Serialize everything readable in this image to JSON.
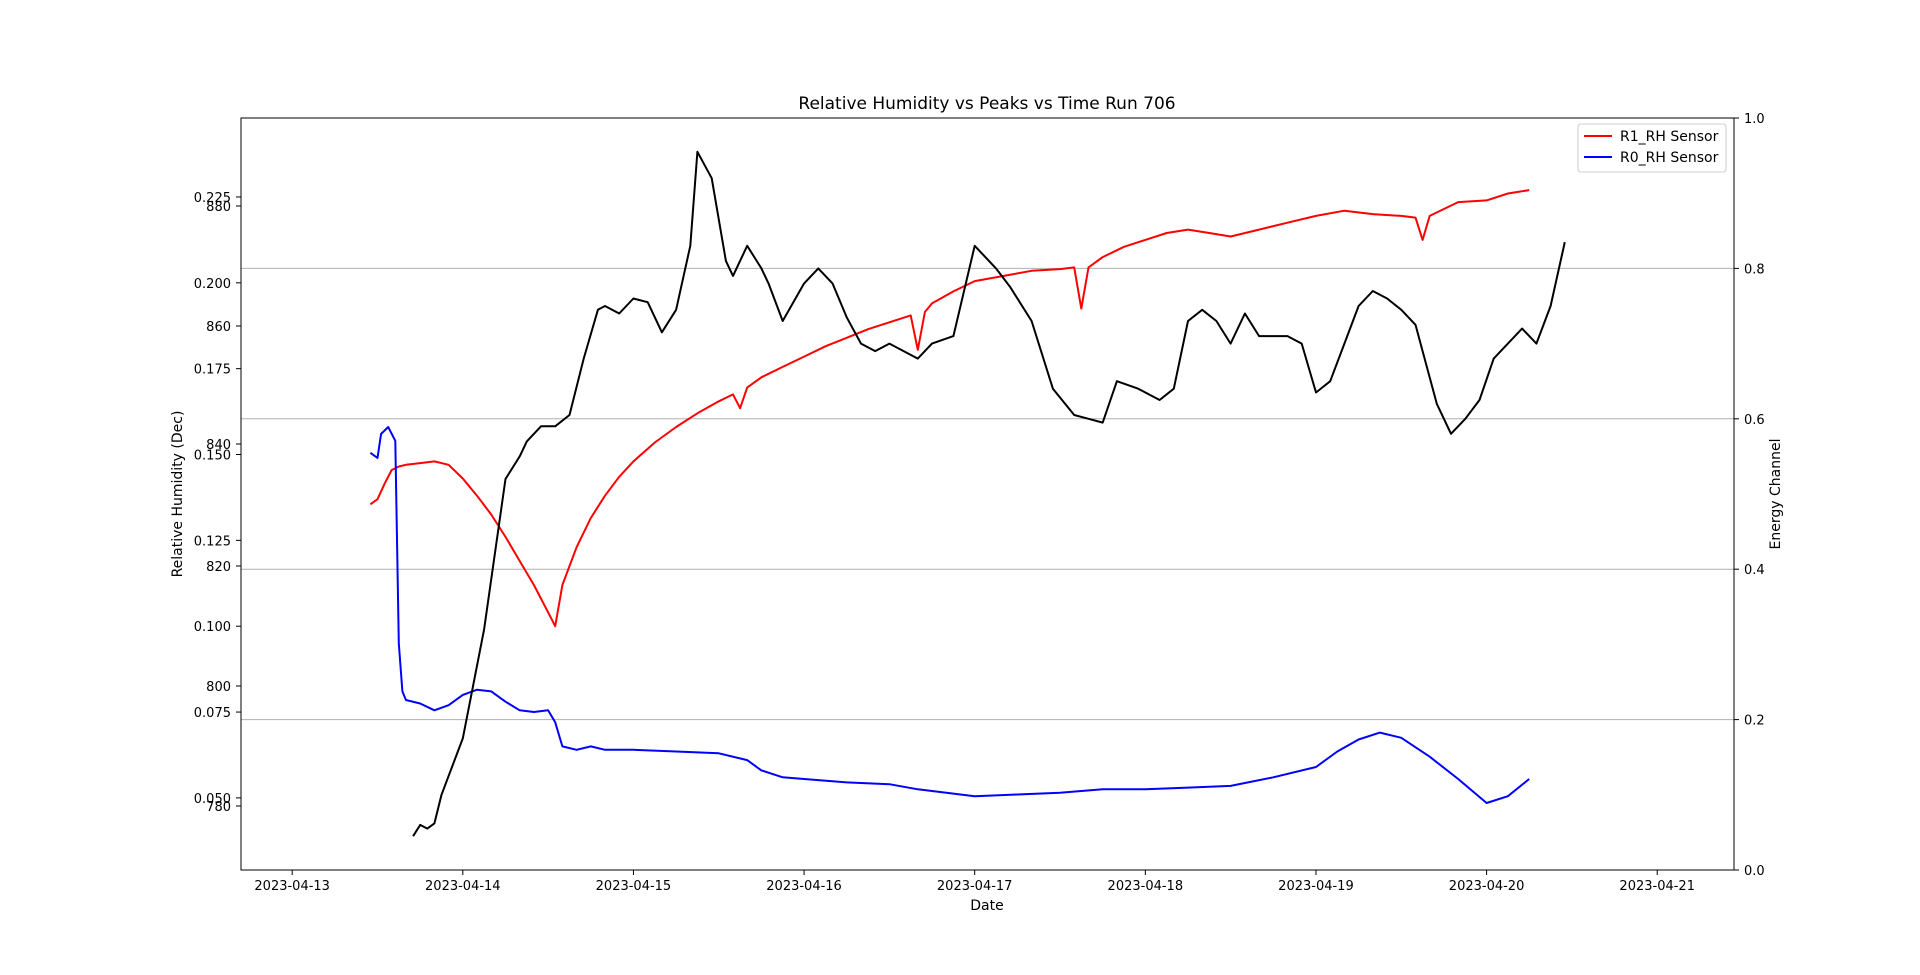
{
  "chart_data": {
    "type": "line",
    "title": "Relative Humidity vs Peaks vs Time Run 706",
    "xlabel": "Date",
    "ylabel_left": "Relative Humidity (Dec)",
    "ylabel_right": "Energy Channel",
    "x_ticks": [
      "2023-04-13",
      "2023-04-14",
      "2023-04-15",
      "2023-04-16",
      "2023-04-17",
      "2023-04-18",
      "2023-04-19",
      "2023-04-20",
      "2023-04-21"
    ],
    "left_ticks_a": [
      "0.050",
      "0.075",
      "0.100",
      "0.125",
      "0.150",
      "0.175",
      "0.200",
      "0.225"
    ],
    "left_ticks_b": [
      "780",
      "800",
      "820",
      "840",
      "860",
      "880"
    ],
    "right_ticks": [
      "0.0",
      "0.2",
      "0.4",
      "0.6",
      "0.8",
      "1.0"
    ],
    "ylim_left": [
      0.029,
      0.248
    ],
    "ylim_right": [
      0.0,
      1.0
    ],
    "xlim_days": [
      -0.3,
      8.45
    ],
    "grid": "horizontal lines at right-axis ticks",
    "legend": {
      "placement": "top-right",
      "entries": [
        {
          "label": "R1_RH Sensor",
          "color": "#ff0000"
        },
        {
          "label": "R0_RH Sensor",
          "color": "#0000ff"
        }
      ]
    },
    "series": [
      {
        "name": "R1_RH Sensor",
        "color": "#ff0000",
        "axis": "left",
        "x": [
          "2023-04-13 11:00",
          "2023-04-13 12:00",
          "2023-04-13 13:00",
          "2023-04-13 14:00",
          "2023-04-13 15:00",
          "2023-04-13 16:00",
          "2023-04-13 18:00",
          "2023-04-13 20:00",
          "2023-04-13 22:00",
          "2023-04-14 00:00",
          "2023-04-14 02:00",
          "2023-04-14 04:00",
          "2023-04-14 06:00",
          "2023-04-14 08:00",
          "2023-04-14 10:00",
          "2023-04-14 11:30",
          "2023-04-14 12:30",
          "2023-04-14 13:00",
          "2023-04-14 14:00",
          "2023-04-14 16:00",
          "2023-04-14 18:00",
          "2023-04-14 20:00",
          "2023-04-14 22:00",
          "2023-04-15 00:00",
          "2023-04-15 03:00",
          "2023-04-15 06:00",
          "2023-04-15 09:00",
          "2023-04-15 12:00",
          "2023-04-15 14:00",
          "2023-04-15 15:00",
          "2023-04-15 16:00",
          "2023-04-15 18:00",
          "2023-04-15 21:00",
          "2023-04-16 00:00",
          "2023-04-16 03:00",
          "2023-04-16 06:00",
          "2023-04-16 09:00",
          "2023-04-16 12:00",
          "2023-04-16 15:00",
          "2023-04-16 16:00",
          "2023-04-16 17:00",
          "2023-04-16 18:00",
          "2023-04-16 21:00",
          "2023-04-17 00:00",
          "2023-04-17 04:00",
          "2023-04-17 08:00",
          "2023-04-17 12:00",
          "2023-04-17 14:00",
          "2023-04-17 15:00",
          "2023-04-17 16:00",
          "2023-04-17 18:00",
          "2023-04-17 21:00",
          "2023-04-18 00:00",
          "2023-04-18 03:00",
          "2023-04-18 06:00",
          "2023-04-18 09:00",
          "2023-04-18 12:00",
          "2023-04-18 16:00",
          "2023-04-18 20:00",
          "2023-04-19 00:00",
          "2023-04-19 04:00",
          "2023-04-19 08:00",
          "2023-04-19 12:00",
          "2023-04-19 14:00",
          "2023-04-19 15:00",
          "2023-04-19 16:00",
          "2023-04-19 18:00",
          "2023-04-19 20:00",
          "2023-04-20 00:00",
          "2023-04-20 03:00",
          "2023-04-20 06:00"
        ],
        "values": [
          0.1355,
          0.137,
          0.1415,
          0.1455,
          0.1465,
          0.147,
          0.1475,
          0.148,
          0.147,
          0.143,
          0.138,
          0.1325,
          0.126,
          0.119,
          0.112,
          0.106,
          0.102,
          0.1,
          0.112,
          0.123,
          0.1315,
          0.138,
          0.1435,
          0.148,
          0.1535,
          0.158,
          0.162,
          0.1655,
          0.1675,
          0.1635,
          0.1695,
          0.1725,
          0.1755,
          0.1785,
          0.1815,
          0.184,
          0.1865,
          0.1885,
          0.1905,
          0.1805,
          0.1915,
          0.194,
          0.1975,
          0.2005,
          0.202,
          0.2035,
          0.204,
          0.2045,
          0.1925,
          0.2045,
          0.2075,
          0.2105,
          0.2125,
          0.2145,
          0.2155,
          0.2145,
          0.2135,
          0.2155,
          0.2175,
          0.2195,
          0.221,
          0.22,
          0.2195,
          0.219,
          0.2125,
          0.2195,
          0.2215,
          0.2235,
          0.224,
          0.226,
          0.227
        ]
      },
      {
        "name": "R0_RH Sensor",
        "color": "#0000ff",
        "axis": "left",
        "x": [
          "2023-04-13 11:00",
          "2023-04-13 12:00",
          "2023-04-13 12:30",
          "2023-04-13 13:30",
          "2023-04-13 14:30",
          "2023-04-13 15:00",
          "2023-04-13 15:30",
          "2023-04-13 16:00",
          "2023-04-13 18:00",
          "2023-04-13 20:00",
          "2023-04-13 22:00",
          "2023-04-14 00:00",
          "2023-04-14 02:00",
          "2023-04-14 04:00",
          "2023-04-14 06:00",
          "2023-04-14 08:00",
          "2023-04-14 10:00",
          "2023-04-14 12:00",
          "2023-04-14 13:00",
          "2023-04-14 14:00",
          "2023-04-14 16:00",
          "2023-04-14 18:00",
          "2023-04-14 20:00",
          "2023-04-15 00:00",
          "2023-04-15 06:00",
          "2023-04-15 12:00",
          "2023-04-15 16:00",
          "2023-04-15 18:00",
          "2023-04-15 21:00",
          "2023-04-16 00:00",
          "2023-04-16 06:00",
          "2023-04-16 12:00",
          "2023-04-16 16:00",
          "2023-04-16 20:00",
          "2023-04-17 00:00",
          "2023-04-17 06:00",
          "2023-04-17 12:00",
          "2023-04-17 18:00",
          "2023-04-18 00:00",
          "2023-04-18 06:00",
          "2023-04-18 12:00",
          "2023-04-18 18:00",
          "2023-04-19 00:00",
          "2023-04-19 03:00",
          "2023-04-19 06:00",
          "2023-04-19 09:00",
          "2023-04-19 12:00",
          "2023-04-19 16:00",
          "2023-04-19 20:00",
          "2023-04-20 00:00",
          "2023-04-20 03:00",
          "2023-04-20 06:00"
        ],
        "values": [
          0.1505,
          0.149,
          0.156,
          0.158,
          0.154,
          0.095,
          0.081,
          0.0785,
          0.0775,
          0.0755,
          0.077,
          0.08,
          0.0815,
          0.081,
          0.078,
          0.0755,
          0.075,
          0.0755,
          0.072,
          0.065,
          0.064,
          0.065,
          0.064,
          0.064,
          0.0635,
          0.063,
          0.061,
          0.058,
          0.056,
          0.0555,
          0.0545,
          0.054,
          0.0525,
          0.0515,
          0.0505,
          0.051,
          0.0515,
          0.0525,
          0.0525,
          0.053,
          0.0535,
          0.056,
          0.059,
          0.0635,
          0.067,
          0.069,
          0.0675,
          0.062,
          0.0555,
          0.0485,
          0.0505,
          0.0555
        ]
      },
      {
        "name": "",
        "color": "#000000",
        "axis": "right",
        "x": [
          "2023-04-13 17:00",
          "2023-04-13 18:00",
          "2023-04-13 19:00",
          "2023-04-13 20:00",
          "2023-04-13 21:00",
          "2023-04-14 00:00",
          "2023-04-14 03:00",
          "2023-04-14 06:00",
          "2023-04-14 08:00",
          "2023-04-14 09:00",
          "2023-04-14 11:00",
          "2023-04-14 13:00",
          "2023-04-14 15:00",
          "2023-04-14 17:00",
          "2023-04-14 19:00",
          "2023-04-14 20:00",
          "2023-04-14 22:00",
          "2023-04-15 00:00",
          "2023-04-15 02:00",
          "2023-04-15 04:00",
          "2023-04-15 06:00",
          "2023-04-15 08:00",
          "2023-04-15 09:00",
          "2023-04-15 11:00",
          "2023-04-15 13:00",
          "2023-04-15 14:00",
          "2023-04-15 16:00",
          "2023-04-15 18:00",
          "2023-04-15 19:00",
          "2023-04-15 21:00",
          "2023-04-16 00:00",
          "2023-04-16 02:00",
          "2023-04-16 04:00",
          "2023-04-16 06:00",
          "2023-04-16 08:00",
          "2023-04-16 10:00",
          "2023-04-16 12:00",
          "2023-04-16 14:00",
          "2023-04-16 16:00",
          "2023-04-16 18:00",
          "2023-04-16 21:00",
          "2023-04-17 00:00",
          "2023-04-17 03:00",
          "2023-04-17 05:00",
          "2023-04-17 08:00",
          "2023-04-17 11:00",
          "2023-04-17 14:00",
          "2023-04-17 16:00",
          "2023-04-17 18:00",
          "2023-04-17 20:00",
          "2023-04-17 23:00",
          "2023-04-18 02:00",
          "2023-04-18 04:00",
          "2023-04-18 06:00",
          "2023-04-18 08:00",
          "2023-04-18 10:00",
          "2023-04-18 12:00",
          "2023-04-18 14:00",
          "2023-04-18 16:00",
          "2023-04-18 18:00",
          "2023-04-18 20:00",
          "2023-04-18 22:00",
          "2023-04-19 00:00",
          "2023-04-19 02:00",
          "2023-04-19 04:00",
          "2023-04-19 06:00",
          "2023-04-19 08:00",
          "2023-04-19 10:00",
          "2023-04-19 12:00",
          "2023-04-19 14:00",
          "2023-04-19 15:00",
          "2023-04-19 17:00",
          "2023-04-19 19:00",
          "2023-04-19 21:00",
          "2023-04-19 23:00",
          "2023-04-20 01:00",
          "2023-04-20 03:00",
          "2023-04-20 05:00",
          "2023-04-20 07:00",
          "2023-04-20 09:00",
          "2023-04-20 11:00"
        ],
        "values": [
          0.045,
          0.06,
          0.055,
          0.062,
          0.1,
          0.175,
          0.32,
          0.52,
          0.55,
          0.57,
          0.59,
          0.59,
          0.605,
          0.68,
          0.745,
          0.75,
          0.74,
          0.76,
          0.755,
          0.715,
          0.745,
          0.83,
          0.955,
          0.92,
          0.81,
          0.79,
          0.83,
          0.8,
          0.78,
          0.73,
          0.78,
          0.8,
          0.78,
          0.735,
          0.7,
          0.69,
          0.7,
          0.69,
          0.68,
          0.7,
          0.71,
          0.83,
          0.8,
          0.775,
          0.73,
          0.64,
          0.605,
          0.6,
          0.595,
          0.65,
          0.64,
          0.625,
          0.64,
          0.73,
          0.745,
          0.73,
          0.7,
          0.74,
          0.71,
          0.71,
          0.71,
          0.7,
          0.635,
          0.65,
          0.7,
          0.75,
          0.77,
          0.76,
          0.745,
          0.725,
          0.69,
          0.62,
          0.58,
          0.6,
          0.625,
          0.68,
          0.7,
          0.72,
          0.7,
          0.75,
          0.835
        ]
      }
    ]
  }
}
